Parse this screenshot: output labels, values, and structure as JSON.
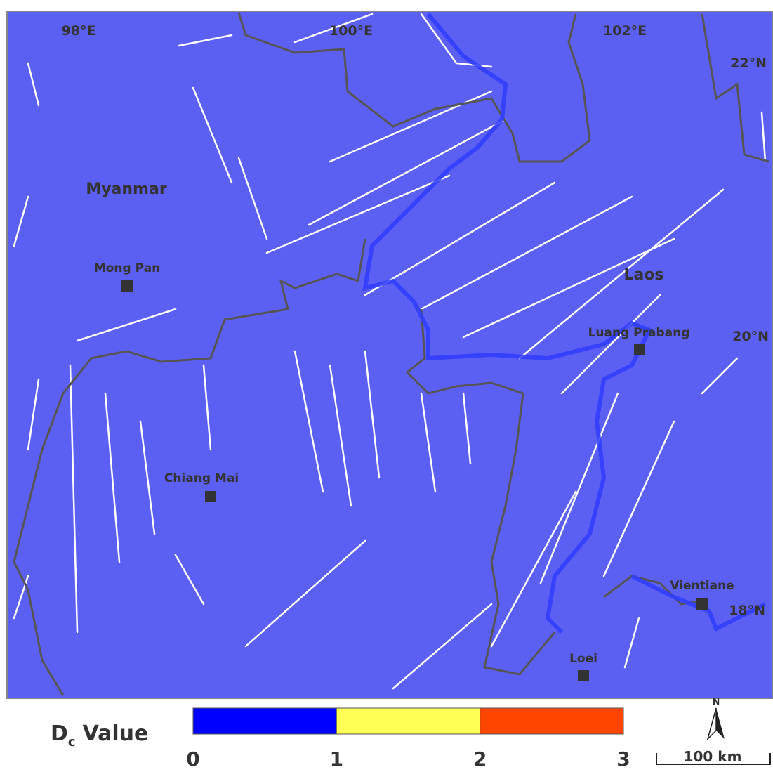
{
  "map": {
    "graticule": [
      "98°E",
      "100°E",
      "102°E",
      "22°N",
      "20°N",
      "18°N"
    ],
    "regions": [
      "Myanmar",
      "Laos"
    ],
    "places": [
      "Mong Pan",
      "Chiang Mai",
      "Luang Prabang",
      "Vientiane",
      "Loei"
    ]
  },
  "legend": {
    "title": "D",
    "subscript": "c",
    "title_suffix": "Value",
    "bins": [
      0,
      1,
      2,
      3
    ],
    "colors": [
      "#0000ff",
      "#ffff55",
      "#ff4500"
    ]
  },
  "scale_bar": "100 km",
  "north": "N"
}
